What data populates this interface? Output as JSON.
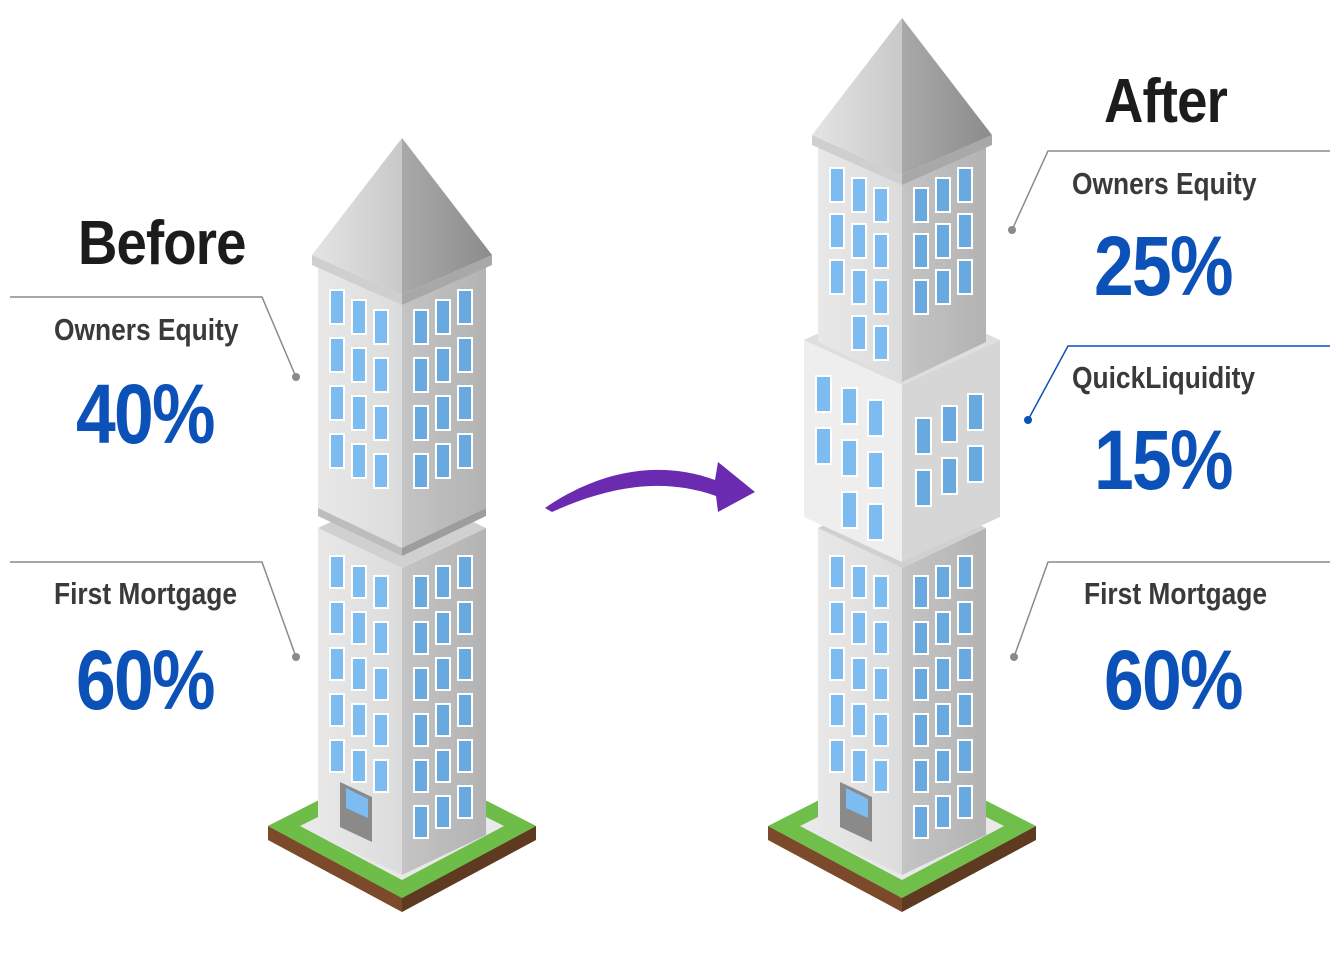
{
  "colors": {
    "value_blue": "#0b51b8",
    "arrow_purple": "#6a2bb1",
    "grass": "#6fbf4a",
    "window_blue": "#74b8ee"
  },
  "before": {
    "heading": "Before",
    "segments": [
      {
        "label": "Owners Equity",
        "value": "40%"
      },
      {
        "label": "First Mortgage",
        "value": "60%"
      }
    ]
  },
  "after": {
    "heading": "After",
    "segments": [
      {
        "label": "Owners Equity",
        "value": "25%"
      },
      {
        "label": "QuickLiquidity",
        "value": "15%"
      },
      {
        "label": "First Mortgage",
        "value": "60%"
      }
    ]
  },
  "icons": {
    "transition": "arrow-right-icon",
    "building": "building-icon"
  }
}
